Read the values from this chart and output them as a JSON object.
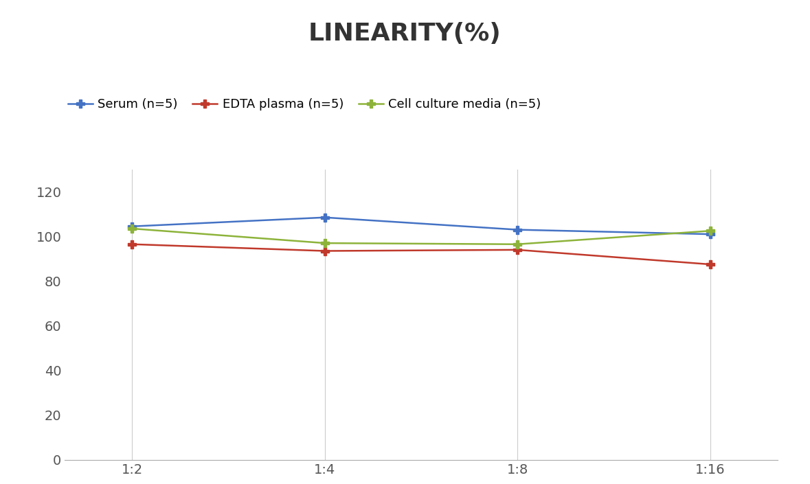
{
  "title": "LINEARITY(%)",
  "title_fontsize": 26,
  "title_fontweight": "bold",
  "x_labels": [
    "1:2",
    "1:4",
    "1:8",
    "1:16"
  ],
  "x_positions": [
    0,
    1,
    2,
    3
  ],
  "serum": [
    104.5,
    108.5,
    103.0,
    101.0
  ],
  "edta": [
    96.5,
    93.5,
    94.0,
    87.5
  ],
  "cell": [
    103.5,
    97.0,
    96.5,
    102.5
  ],
  "serum_color": "#4472C4",
  "edta_color": "#C0392B",
  "cell_color": "#8DB33A",
  "serum_label": "Serum (n=5)",
  "edta_label": "EDTA plasma (n=5)",
  "cell_label": "Cell culture media (n=5)",
  "ylim": [
    0,
    130
  ],
  "yticks": [
    0,
    20,
    40,
    60,
    80,
    100,
    120
  ],
  "background_color": "#FFFFFF",
  "grid_color": "#CCCCCC",
  "linewidth": 1.8,
  "markersize": 8,
  "tick_fontsize": 14,
  "legend_fontsize": 13
}
